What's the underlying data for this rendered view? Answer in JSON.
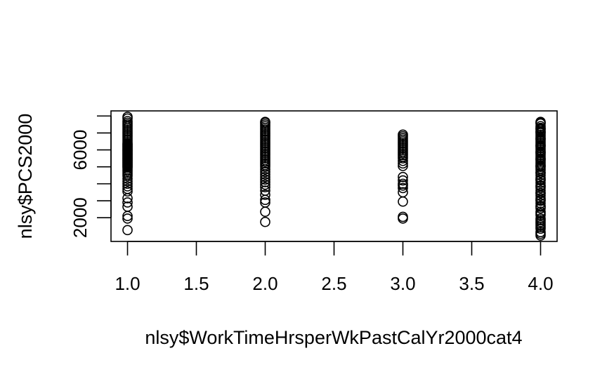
{
  "chart_data": {
    "type": "scatter",
    "title": "",
    "xlabel": "nlsy$WorkTimeHrsperWkPastCalYr2000cat4",
    "ylabel": "nlsy$PCS2000",
    "xlim": [
      0.88,
      4.12
    ],
    "ylim": [
      600,
      8300
    ],
    "x_ticks": [
      1.0,
      1.5,
      2.0,
      2.5,
      3.0,
      3.5,
      4.0
    ],
    "x_tick_labels": [
      "1.0",
      "1.5",
      "2.0",
      "2.5",
      "3.0",
      "3.5",
      "4.0"
    ],
    "y_ticks": [
      2000,
      4000,
      6000,
      8000
    ],
    "y_tick_labels": [
      "2000",
      "",
      "6000",
      ""
    ],
    "y_minor_ticks": [
      3000,
      5000,
      7000
    ],
    "grid": false,
    "legend": "none",
    "series": [
      {
        "x": [
          1,
          1,
          1,
          1,
          1,
          1,
          1,
          1,
          1,
          1,
          1,
          1,
          1,
          1,
          1,
          1,
          1,
          1,
          1,
          1,
          1,
          1,
          1,
          1,
          1,
          1,
          1,
          1,
          1,
          1,
          1,
          1,
          1,
          1,
          1,
          1,
          1,
          1,
          1,
          1,
          1,
          1,
          1,
          1,
          1,
          1,
          1,
          1,
          1,
          1,
          1,
          1,
          1,
          1,
          1,
          1,
          1,
          1,
          1,
          1,
          1,
          1
        ],
        "y": [
          1270,
          1950,
          2100,
          2650,
          2900,
          3150,
          3550,
          3700,
          3850,
          4000,
          4150,
          4300,
          4450,
          4550,
          4650,
          4750,
          4850,
          4950,
          5000,
          5050,
          5100,
          5150,
          5200,
          5250,
          5300,
          5350,
          5400,
          5450,
          5500,
          5550,
          5600,
          5650,
          5700,
          5750,
          5800,
          5850,
          5900,
          5950,
          6000,
          6050,
          6100,
          6150,
          6200,
          6250,
          6300,
          6350,
          6400,
          6500,
          6600,
          6700,
          6800,
          6900,
          7000,
          7100,
          7200,
          7300,
          7400,
          7500,
          7600,
          7700,
          7850,
          7950
        ]
      },
      {
        "x": [
          2,
          2,
          2,
          2,
          2,
          2,
          2,
          2,
          2,
          2,
          2,
          2,
          2,
          2,
          2,
          2,
          2,
          2,
          2,
          2,
          2,
          2,
          2,
          2,
          2,
          2,
          2,
          2,
          2,
          2,
          2,
          2,
          2,
          2,
          2,
          2,
          2,
          2,
          2,
          2,
          2,
          2
        ],
        "y": [
          1750,
          2350,
          2900,
          3050,
          3350,
          3600,
          3800,
          3950,
          4100,
          4250,
          4400,
          4550,
          4700,
          4850,
          5000,
          5100,
          5200,
          5300,
          5400,
          5500,
          5600,
          5700,
          5800,
          5900,
          6000,
          6100,
          6200,
          6300,
          6400,
          6500,
          6600,
          6700,
          6800,
          6900,
          7000,
          7100,
          7200,
          7300,
          7400,
          7500,
          7650,
          7600
        ]
      },
      {
        "x": [
          3,
          3,
          3,
          3,
          3,
          3,
          3,
          3,
          3,
          3,
          3,
          3,
          3,
          3,
          3,
          3,
          3,
          3,
          3,
          3,
          3,
          3,
          3,
          3,
          3,
          3,
          3
        ],
        "y": [
          1950,
          2050,
          2950,
          3500,
          3750,
          3900,
          4000,
          4200,
          4400,
          5050,
          5200,
          5350,
          5500,
          5600,
          5700,
          5800,
          5900,
          6000,
          6100,
          6200,
          6300,
          6400,
          6500,
          6600,
          6700,
          6800,
          6900
        ]
      },
      {
        "x": [
          4,
          4,
          4,
          4,
          4,
          4,
          4,
          4,
          4,
          4,
          4,
          4,
          4,
          4,
          4,
          4,
          4,
          4,
          4,
          4,
          4,
          4,
          4,
          4,
          4,
          4,
          4,
          4,
          4,
          4,
          4,
          4,
          4,
          4,
          4,
          4,
          4,
          4,
          4,
          4,
          4,
          4,
          4,
          4,
          4,
          4,
          4,
          4,
          4,
          4,
          4,
          4,
          4,
          4,
          4,
          4,
          4,
          4,
          4,
          4,
          4,
          4,
          4,
          4,
          4,
          4,
          4,
          4,
          4,
          4,
          4
        ],
        "y": [
          950,
          1150,
          1350,
          1550,
          1750,
          1950,
          2150,
          2350,
          2550,
          2700,
          2850,
          3000,
          3150,
          3300,
          3450,
          3600,
          3750,
          3900,
          4050,
          4200,
          4350,
          4500,
          4650,
          4800,
          4900,
          5000,
          5100,
          5200,
          5300,
          5400,
          5500,
          5600,
          5700,
          5800,
          5900,
          6000,
          6100,
          6200,
          6300,
          6400,
          6500,
          6600,
          6700,
          6800,
          6900,
          7000,
          7100,
          7200,
          7300,
          7400,
          7600,
          7550,
          1050,
          1450,
          1850,
          2250,
          2650,
          3050,
          3450,
          3850,
          4250,
          4650,
          5050,
          5450,
          5850,
          6250,
          6650,
          7050,
          7250,
          7650,
          1650
        ]
      }
    ]
  }
}
